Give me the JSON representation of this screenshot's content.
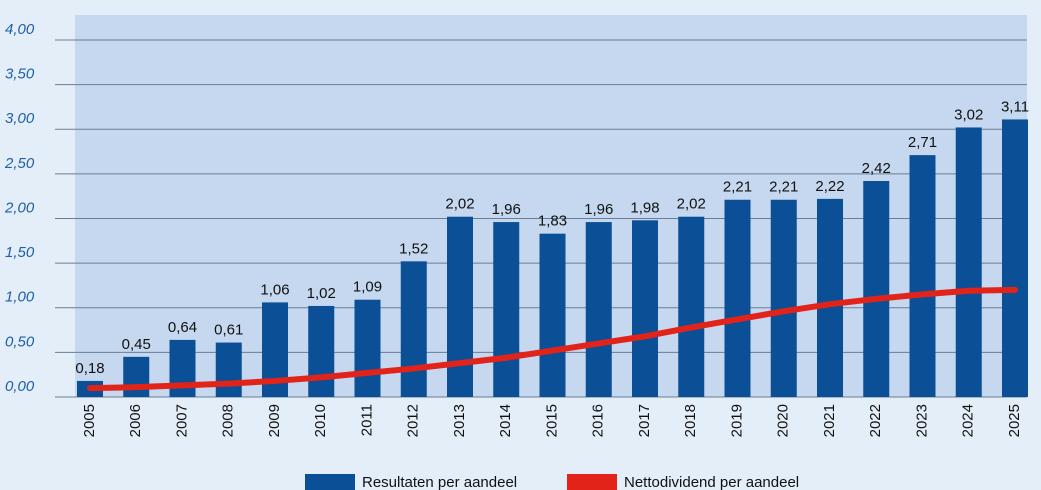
{
  "chart_data": {
    "type": "bar",
    "categories": [
      "2005",
      "2006",
      "2007",
      "2008",
      "2009",
      "2010",
      "2011",
      "2012",
      "2013",
      "2014",
      "2015",
      "2016",
      "2017",
      "2018",
      "2019",
      "2020",
      "2021",
      "2022",
      "2023",
      "2024",
      "2025"
    ],
    "series": [
      {
        "name": "Resultaten per aandeel",
        "type": "bar",
        "color": "#0b4f97",
        "values": [
          0.18,
          0.45,
          0.64,
          0.61,
          1.06,
          1.02,
          1.09,
          1.52,
          2.02,
          1.96,
          1.83,
          1.96,
          1.98,
          2.02,
          2.21,
          2.21,
          2.22,
          2.42,
          2.71,
          3.02,
          3.11
        ],
        "value_labels": [
          "0,18",
          "0,45",
          "0,64",
          "0,61",
          "1,06",
          "1,02",
          "1,09",
          "1,52",
          "2,02",
          "1,96",
          "1,83",
          "1,96",
          "1,98",
          "2,02",
          "2,21",
          "2,21",
          "2,22",
          "2,42",
          "2,71",
          "3,02",
          "3,11"
        ]
      },
      {
        "name": "Nettodividend per aandeel",
        "type": "line",
        "color": "#e2231a",
        "values": [
          0.1,
          0.11,
          0.13,
          0.15,
          0.18,
          0.22,
          0.27,
          0.32,
          0.38,
          0.44,
          0.52,
          0.6,
          0.68,
          0.78,
          0.87,
          0.96,
          1.04,
          1.1,
          1.15,
          1.19,
          1.2
        ]
      }
    ],
    "ylim": [
      0,
      4
    ],
    "yticks": [
      {
        "value": 0,
        "label": "0,00"
      },
      {
        "value": 0.5,
        "label": "0,50"
      },
      {
        "value": 1,
        "label": "1,00"
      },
      {
        "value": 1.5,
        "label": "1,50"
      },
      {
        "value": 2,
        "label": "2,00"
      },
      {
        "value": 2.5,
        "label": "2,50"
      },
      {
        "value": 3,
        "label": "3,00"
      },
      {
        "value": 3.5,
        "label": "3,50"
      },
      {
        "value": 4,
        "label": "4,00"
      }
    ],
    "grid": true
  }
}
